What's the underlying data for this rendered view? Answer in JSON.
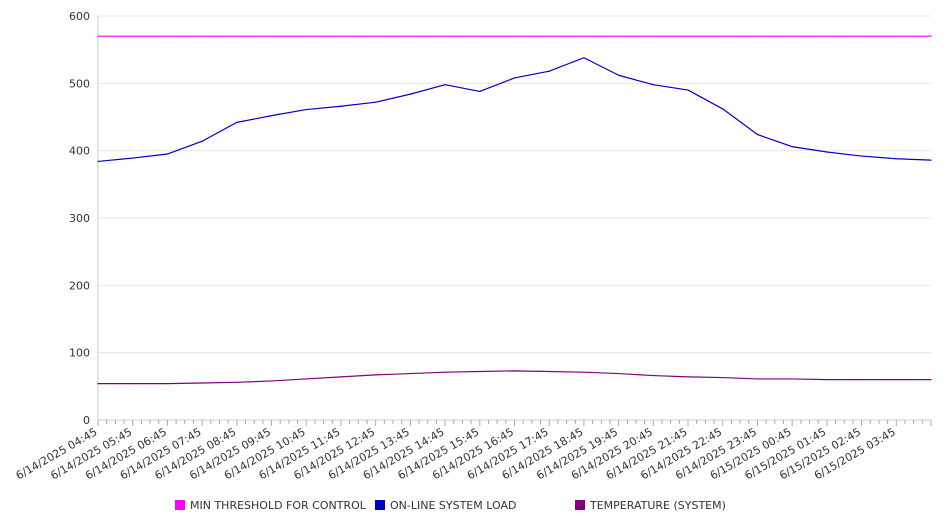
{
  "chart_data": {
    "type": "line",
    "title": "",
    "xlabel": "",
    "ylabel": "",
    "ylim": [
      0,
      600
    ],
    "yticks": [
      0,
      100,
      200,
      300,
      400,
      500,
      600
    ],
    "grid": "horizontal",
    "legend_position": "bottom",
    "x_tick_labels": [
      "6/14/2025 04:45",
      "6/14/2025 05:45",
      "6/14/2025 06:45",
      "6/14/2025 07:45",
      "6/14/2025 08:45",
      "6/14/2025 09:45",
      "6/14/2025 10:45",
      "6/14/2025 11:45",
      "6/14/2025 12:45",
      "6/14/2025 13:45",
      "6/14/2025 14:45",
      "6/14/2025 15:45",
      "6/14/2025 16:45",
      "6/14/2025 17:45",
      "6/14/2025 18:45",
      "6/14/2025 19:45",
      "6/14/2025 20:45",
      "6/14/2025 21:45",
      "6/14/2025 22:45",
      "6/14/2025 23:45",
      "6/15/2025 00:45",
      "6/15/2025 01:45",
      "6/15/2025 02:45",
      "6/15/2025 03:45"
    ],
    "x_hours": [
      0,
      1,
      2,
      3,
      4,
      5,
      6,
      7,
      8,
      9,
      10,
      11,
      12,
      13,
      14,
      15,
      16,
      17,
      18,
      19,
      20,
      21,
      22,
      23,
      24
    ],
    "series": [
      {
        "name": "MIN THRESHOLD FOR CONTROL",
        "color": "#ff00ff",
        "values": [
          570,
          570,
          570,
          570,
          570,
          570,
          570,
          570,
          570,
          570,
          570,
          570,
          570,
          570,
          570,
          570,
          570,
          570,
          570,
          570,
          570,
          570,
          570,
          570,
          570
        ]
      },
      {
        "name": "ON-LINE SYSTEM LOAD",
        "color": "#0000cc",
        "values": [
          384,
          389,
          395,
          414,
          442,
          452,
          461,
          466,
          472,
          484,
          498,
          488,
          508,
          518,
          538,
          512,
          498,
          490,
          462,
          424,
          406,
          398,
          392,
          388,
          386
        ]
      },
      {
        "name": "TEMPERATURE (SYSTEM)",
        "color": "#800080",
        "values": [
          54,
          54,
          54,
          55,
          56,
          58,
          61,
          64,
          67,
          69,
          71,
          72,
          73,
          72,
          71,
          69,
          66,
          64,
          63,
          61,
          61,
          60,
          60,
          60,
          60
        ]
      }
    ]
  }
}
